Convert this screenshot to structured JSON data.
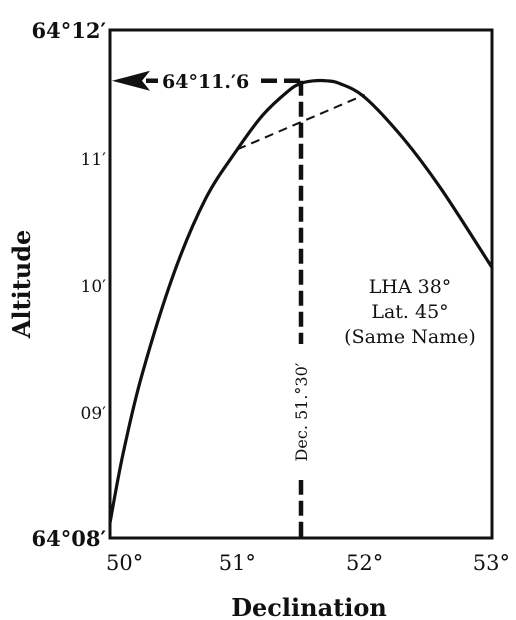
{
  "chart_data": {
    "type": "line",
    "title": "",
    "xlabel": "Declination",
    "ylabel": "Altitude",
    "xlim": [
      50,
      53
    ],
    "ylim": [
      8,
      12
    ],
    "x_ticks": [
      {
        "value": 50,
        "label": "50°"
      },
      {
        "value": 51,
        "label": "51°"
      },
      {
        "value": 52,
        "label": "52°"
      },
      {
        "value": 53,
        "label": "53°"
      }
    ],
    "y_ticks": [
      {
        "value": 8,
        "label": "64°08′"
      },
      {
        "value": 9,
        "label": "09′"
      },
      {
        "value": 10,
        "label": "10′"
      },
      {
        "value": 11,
        "label": "11′"
      },
      {
        "value": 12,
        "label": "64°12′"
      }
    ],
    "series": [
      {
        "x": [
          50.0,
          50.1,
          50.25,
          50.5,
          50.75,
          51.0,
          51.2,
          51.4,
          51.5,
          51.6,
          51.7,
          51.8,
          52.0,
          52.3,
          52.6,
          53.0
        ],
        "y": [
          8.12,
          8.65,
          9.28,
          10.08,
          10.67,
          11.06,
          11.33,
          11.52,
          11.58,
          11.6,
          11.6,
          11.58,
          11.47,
          11.15,
          10.75,
          10.13
        ]
      }
    ],
    "chord": {
      "x": [
        51.0,
        52.0
      ],
      "y": [
        11.06,
        11.49
      ]
    },
    "dec_marker": {
      "x": 51.5,
      "label": "Dec. 51.°30′"
    },
    "altitude_marker": {
      "y": 11.6,
      "label": "64°11.′6"
    },
    "annotation": [
      "LHA 38°",
      "Lat. 45°",
      "(Same Name)"
    ]
  }
}
